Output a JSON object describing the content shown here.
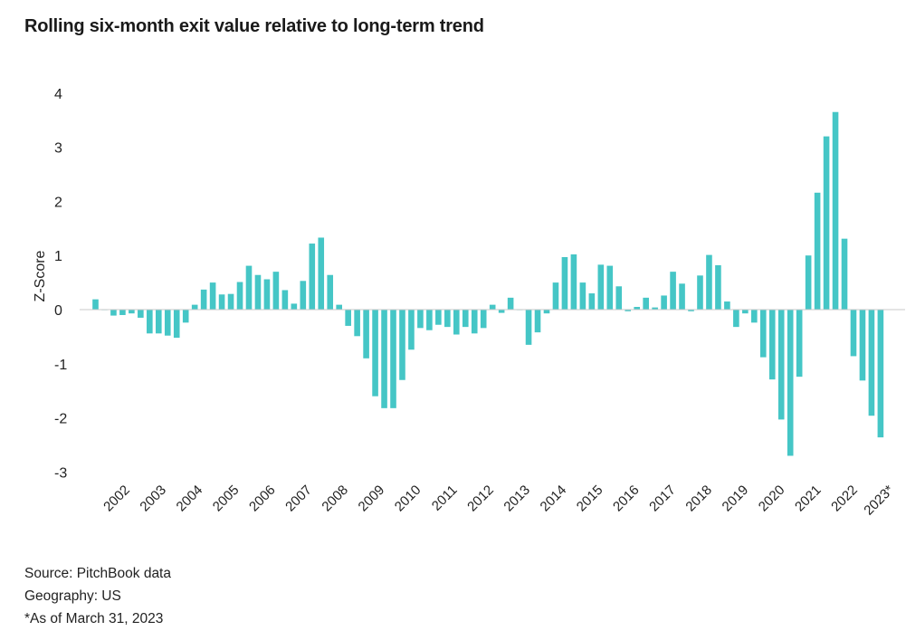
{
  "title": "Rolling six-month exit value relative to long-term trend",
  "notes": {
    "source": "Source: PitchBook data",
    "geography": "Geography: US",
    "asof": "*As of March 31, 2023"
  },
  "colors": {
    "bar": "#45c6c6",
    "baseline": "#c8c8c8"
  },
  "chart_data": {
    "type": "bar",
    "title": "Rolling six-month exit value relative to long-term trend",
    "xlabel": "",
    "ylabel": "Z-Score",
    "ylim": [
      -3.3,
      4.3
    ],
    "yticks": [
      4,
      3,
      2,
      1,
      0,
      -1,
      -2,
      -3
    ],
    "grid": false,
    "legend": "none",
    "year_labels": [
      "2002",
      "2003",
      "2004",
      "2005",
      "2006",
      "2007",
      "2008",
      "2009",
      "2010",
      "2011",
      "2012",
      "2013",
      "2014",
      "2015",
      "2016",
      "2017",
      "2018",
      "2019",
      "2020",
      "2021",
      "2022",
      "2023*"
    ],
    "values": [
      0.19,
      0.0,
      -0.11,
      -0.1,
      -0.07,
      -0.15,
      -0.44,
      -0.44,
      -0.48,
      -0.52,
      -0.24,
      0.09,
      0.37,
      0.5,
      0.28,
      0.29,
      0.51,
      0.81,
      0.64,
      0.56,
      0.7,
      0.36,
      0.11,
      0.53,
      1.22,
      1.33,
      0.64,
      0.09,
      -0.3,
      -0.49,
      -0.9,
      -1.6,
      -1.82,
      -1.82,
      -1.3,
      -0.74,
      -0.34,
      -0.38,
      -0.28,
      -0.32,
      -0.46,
      -0.32,
      -0.44,
      -0.34,
      0.09,
      -0.06,
      0.22,
      0.0,
      -0.65,
      -0.42,
      -0.07,
      0.5,
      0.97,
      1.02,
      0.5,
      0.3,
      0.83,
      0.81,
      0.43,
      -0.03,
      0.05,
      0.22,
      0.04,
      0.26,
      0.7,
      0.48,
      -0.03,
      0.63,
      1.01,
      0.82,
      0.15,
      -0.32,
      -0.07,
      -0.24,
      -0.88,
      -1.29,
      -2.03,
      -2.7,
      -1.24,
      1.0,
      2.16,
      3.2,
      3.65,
      1.31,
      -0.86,
      -1.31,
      -1.96,
      -2.36
    ]
  }
}
